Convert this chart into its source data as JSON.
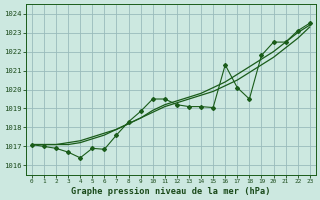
{
  "title": "Graphe pression niveau de la mer (hPa)",
  "background_color": "#cce8e0",
  "grid_color": "#99bbbb",
  "line_color": "#1a5c1a",
  "xlim": [
    -0.5,
    23.5
  ],
  "ylim": [
    1015.5,
    1024.5
  ],
  "yticks": [
    1016,
    1017,
    1018,
    1019,
    1020,
    1021,
    1022,
    1023,
    1024
  ],
  "xticks": [
    0,
    1,
    2,
    3,
    4,
    5,
    6,
    7,
    8,
    9,
    10,
    11,
    12,
    13,
    14,
    15,
    16,
    17,
    18,
    19,
    20,
    21,
    22,
    23
  ],
  "smooth_line1": [
    1017.1,
    1017.1,
    1017.1,
    1017.2,
    1017.3,
    1017.5,
    1017.7,
    1017.9,
    1018.2,
    1018.5,
    1018.8,
    1019.1,
    1019.3,
    1019.5,
    1019.7,
    1019.9,
    1020.2,
    1020.5,
    1020.9,
    1021.3,
    1021.7,
    1022.2,
    1022.7,
    1023.3
  ],
  "smooth_line2": [
    1017.1,
    1017.1,
    1017.1,
    1017.1,
    1017.2,
    1017.4,
    1017.6,
    1017.9,
    1018.2,
    1018.5,
    1018.9,
    1019.2,
    1019.4,
    1019.6,
    1019.8,
    1020.1,
    1020.4,
    1020.8,
    1021.2,
    1021.6,
    1022.0,
    1022.5,
    1023.0,
    1023.4
  ],
  "jagged_line": [
    1017.1,
    1017.0,
    1016.9,
    1016.7,
    1016.4,
    1016.9,
    1016.85,
    1017.6,
    1018.3,
    1018.85,
    1019.5,
    1019.5,
    1019.2,
    1019.1,
    1019.1,
    1019.05,
    1021.3,
    1020.1,
    1019.5,
    1021.8,
    1022.5,
    1022.5,
    1023.1,
    1023.5
  ]
}
